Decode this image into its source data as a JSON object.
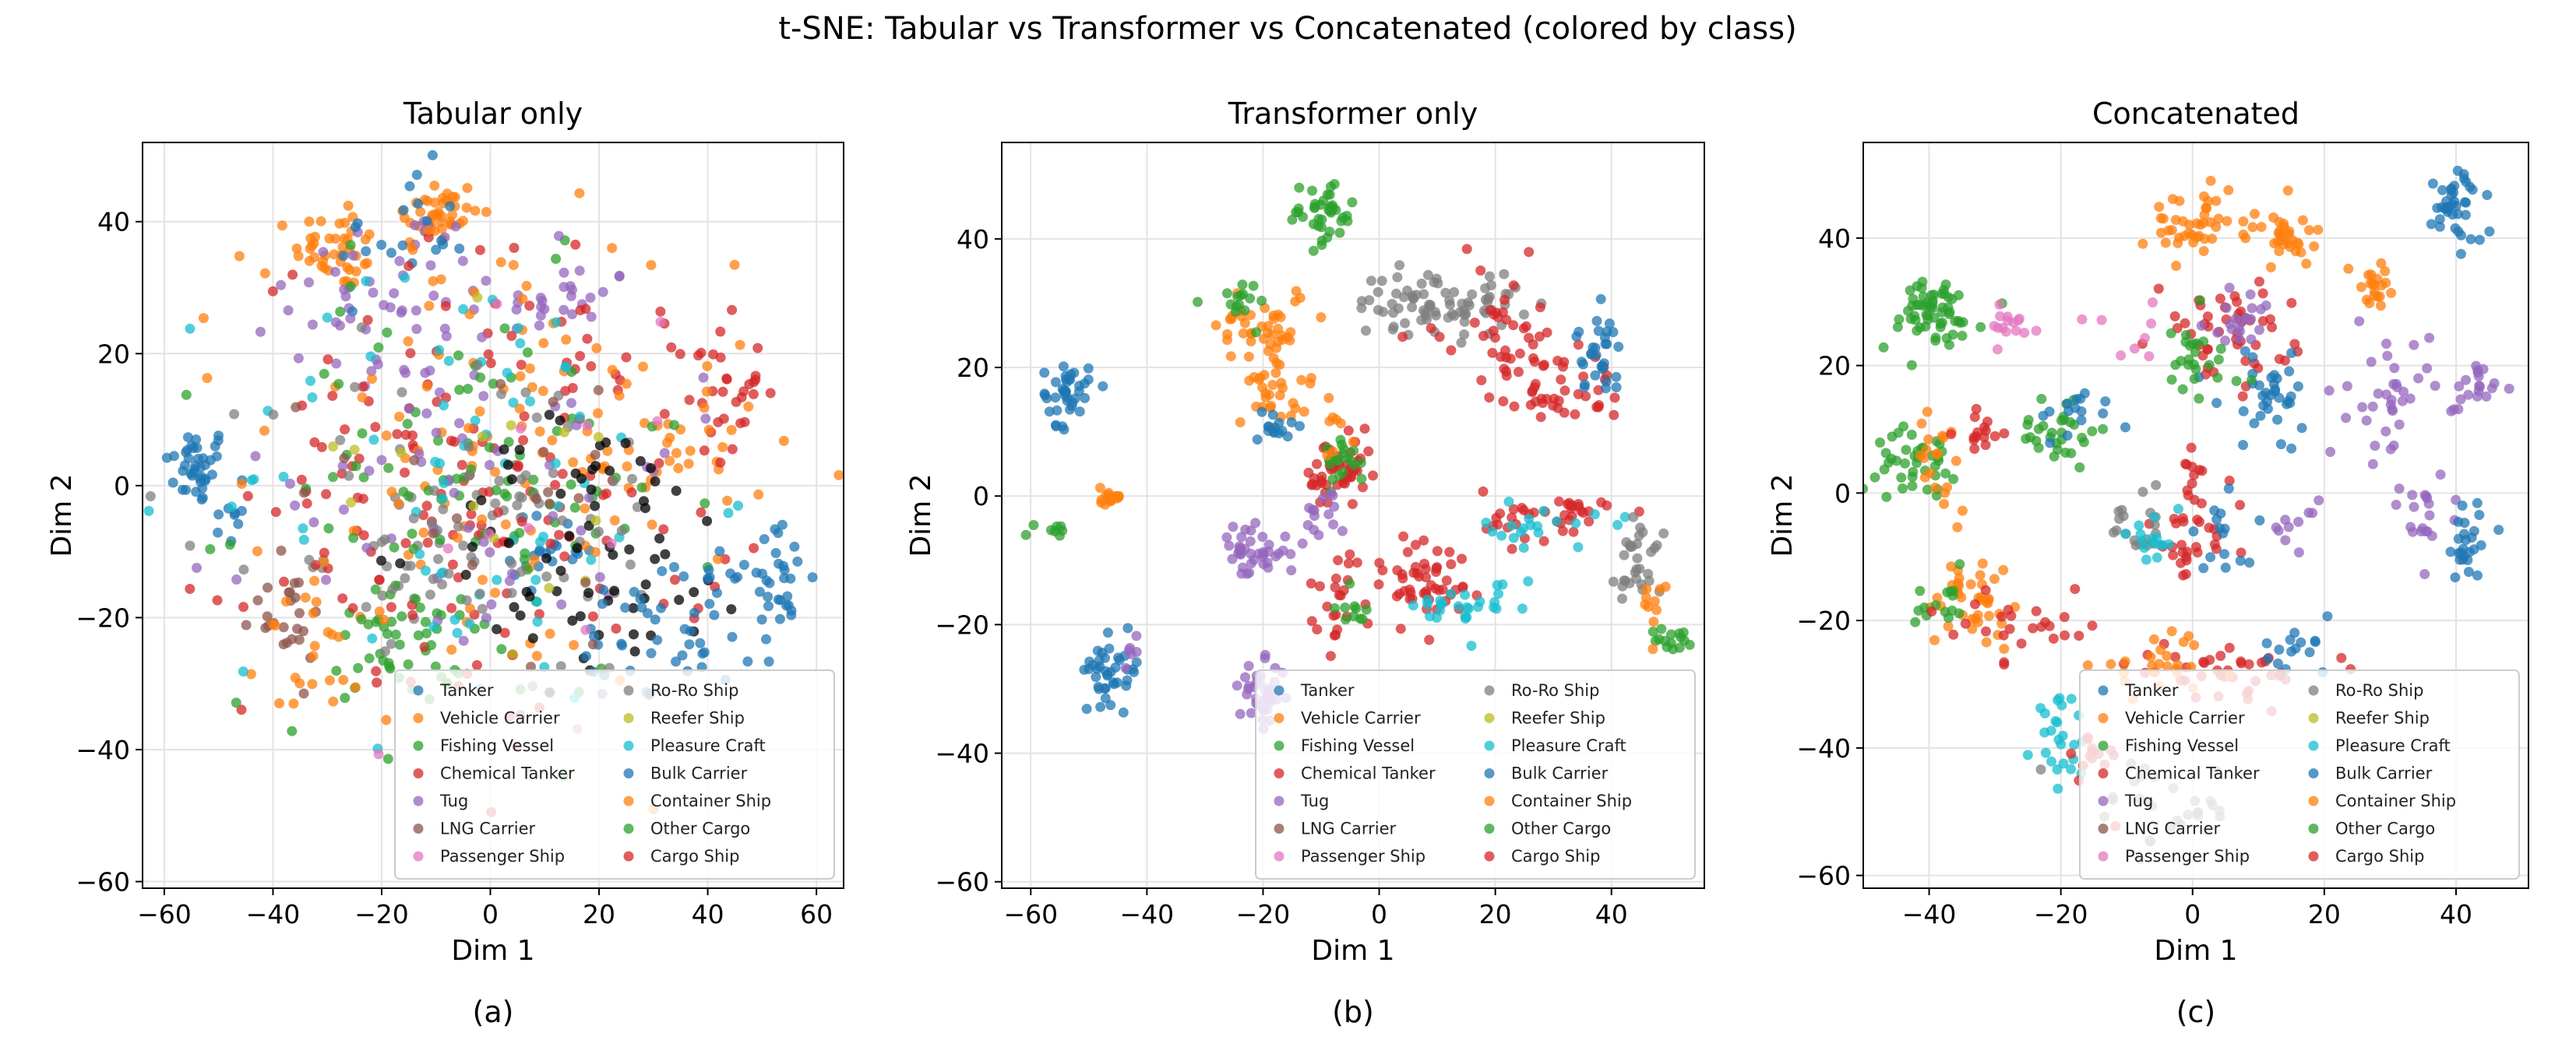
{
  "figure": {
    "title": "t-SNE: Tabular vs Transformer vs Concatenated (colored by class)"
  },
  "chart_data": [
    {
      "type": "scatter",
      "title": "Tabular only",
      "caption": "(a)",
      "xlabel": "Dim 1",
      "ylabel": "Dim 2",
      "xlim": [
        -64,
        65
      ],
      "ylim": [
        -61,
        52
      ],
      "xticks": [
        -60,
        -40,
        -20,
        0,
        20,
        40,
        60
      ],
      "yticks": [
        -60,
        -40,
        -20,
        0,
        20,
        40
      ],
      "grid": true,
      "legend_position": "lower-right",
      "clusters": [
        {
          "cls": 0,
          "cx": -54,
          "cy": 3,
          "sx": 3,
          "sy": 3,
          "n": 40
        },
        {
          "cls": 0,
          "cx": -48,
          "cy": -6,
          "sx": 1.5,
          "sy": 1.5,
          "n": 8
        },
        {
          "cls": 1,
          "cx": -28,
          "cy": 36,
          "sx": 4,
          "sy": 3,
          "n": 40
        },
        {
          "cls": 1,
          "cx": -10,
          "cy": 41,
          "sx": 4,
          "sy": 3,
          "n": 45
        },
        {
          "cls": 4,
          "cx": -17,
          "cy": 28,
          "sx": 10,
          "sy": 8,
          "n": 50
        },
        {
          "cls": 4,
          "cx": 14,
          "cy": 28,
          "sx": 6,
          "sy": 3,
          "n": 25
        },
        {
          "cls": 0,
          "cx": -16,
          "cy": 38,
          "sx": 6,
          "sy": 5,
          "n": 20
        },
        {
          "cls": 3,
          "cx": 42,
          "cy": 15,
          "sx": 4,
          "sy": 5,
          "n": 30
        },
        {
          "cls": 1,
          "cx": 35,
          "cy": 5,
          "sx": 8,
          "sy": 7,
          "n": 30
        },
        {
          "cls": 0,
          "cx": 53,
          "cy": -14,
          "sx": 3,
          "sy": 4,
          "n": 30
        },
        {
          "cls": 0,
          "cx": 12,
          "cy": -10,
          "sx": 4,
          "sy": 3,
          "n": 20
        },
        {
          "cls": 2,
          "cx": -17,
          "cy": -25,
          "sx": 6,
          "sy": 4,
          "n": 40
        },
        {
          "cls": 5,
          "cx": -38,
          "cy": -20,
          "sx": 4,
          "sy": 4,
          "n": 25
        },
        {
          "cls": 8,
          "cx": -10,
          "cy": -10,
          "sx": 10,
          "sy": 6,
          "n": 40
        },
        {
          "cls": 12,
          "cx": -30,
          "cy": -25,
          "sx": 6,
          "sy": 5,
          "n": 25
        },
        {
          "cls": 3,
          "cx": 0,
          "cy": 0,
          "sx": 22,
          "sy": 18,
          "n": 170
        },
        {
          "cls": 1,
          "cx": 0,
          "cy": 5,
          "sx": 22,
          "sy": 18,
          "n": 110
        },
        {
          "cls": 2,
          "cx": -5,
          "cy": -2,
          "sx": 20,
          "sy": 16,
          "n": 100
        },
        {
          "cls": 4,
          "cx": -5,
          "cy": 5,
          "sx": 20,
          "sy": 18,
          "n": 60
        },
        {
          "cls": 10,
          "cx": -5,
          "cy": 0,
          "sx": 22,
          "sy": 18,
          "n": 70
        },
        {
          "cls": 8,
          "cx": 0,
          "cy": -5,
          "sx": 20,
          "sy": 14,
          "n": 60
        },
        {
          "cls": 15,
          "cx": 20,
          "cy": -10,
          "sx": 15,
          "sy": 10,
          "n": 70
        },
        {
          "cls": 11,
          "cx": 35,
          "cy": -20,
          "sx": 10,
          "sy": 6,
          "n": 50
        },
        {
          "cls": 9,
          "cx": 5,
          "cy": 5,
          "sx": 15,
          "sy": 15,
          "n": 15
        },
        {
          "cls": 6,
          "cx": 10,
          "cy": -5,
          "sx": 15,
          "sy": 15,
          "n": 12
        },
        {
          "cls": 5,
          "cx": 0,
          "cy": 0,
          "sx": 20,
          "sy": 15,
          "n": 20
        }
      ]
    },
    {
      "type": "scatter",
      "title": "Transformer only",
      "caption": "(b)",
      "xlabel": "Dim 1",
      "ylabel": "Dim 2",
      "xlim": [
        -65,
        56
      ],
      "ylim": [
        -61,
        55
      ],
      "xticks": [
        -60,
        -40,
        -20,
        0,
        20,
        40
      ],
      "yticks": [
        -60,
        -40,
        -20,
        0,
        20,
        40
      ],
      "grid": true,
      "legend_position": "lower-right",
      "clusters": [
        {
          "cls": 0,
          "cx": -54,
          "cy": 16,
          "sx": 2,
          "sy": 2.5,
          "n": 40
        },
        {
          "cls": 1,
          "cx": -46,
          "cy": 0,
          "sx": 1,
          "sy": 0.8,
          "n": 15
        },
        {
          "cls": 2,
          "cx": -56,
          "cy": -5,
          "sx": 1.5,
          "sy": 0.5,
          "n": 8
        },
        {
          "cls": 0,
          "cx": -46,
          "cy": -27,
          "sx": 2.5,
          "sy": 2.5,
          "n": 40
        },
        {
          "cls": 4,
          "cx": -42,
          "cy": -24,
          "sx": 2,
          "sy": 1.5,
          "n": 6
        },
        {
          "cls": 4,
          "cx": -22,
          "cy": -9,
          "sx": 3,
          "sy": 2,
          "n": 40
        },
        {
          "cls": 4,
          "cx": -20,
          "cy": -31,
          "sx": 2,
          "sy": 2.5,
          "n": 40
        },
        {
          "cls": 2,
          "cx": -10,
          "cy": 44,
          "sx": 3,
          "sy": 2.5,
          "n": 40
        },
        {
          "cls": 1,
          "cx": -20,
          "cy": 27,
          "sx": 4,
          "sy": 3,
          "n": 40
        },
        {
          "cls": 2,
          "cx": -24,
          "cy": 30,
          "sx": 3,
          "sy": 2,
          "n": 15
        },
        {
          "cls": 1,
          "cx": -18,
          "cy": 17,
          "sx": 2,
          "sy": 3,
          "n": 30
        },
        {
          "cls": 0,
          "cx": -18,
          "cy": 11,
          "sx": 1.5,
          "sy": 1.5,
          "n": 15
        },
        {
          "cls": 3,
          "cx": -7,
          "cy": 3,
          "sx": 3,
          "sy": 3,
          "n": 50
        },
        {
          "cls": 2,
          "cx": -6,
          "cy": 6,
          "sx": 2,
          "sy": 2,
          "n": 20
        },
        {
          "cls": 4,
          "cx": -10,
          "cy": -3,
          "sx": 2,
          "sy": 2,
          "n": 15
        },
        {
          "cls": 8,
          "cx": 10,
          "cy": 30,
          "sx": 7,
          "sy": 2.5,
          "n": 80
        },
        {
          "cls": 3,
          "cx": 22,
          "cy": 26,
          "sx": 6,
          "sy": 5,
          "n": 40
        },
        {
          "cls": 3,
          "cx": 30,
          "cy": 17,
          "sx": 6,
          "sy": 3,
          "n": 40
        },
        {
          "cls": 0,
          "cx": 38,
          "cy": 22,
          "sx": 2,
          "sy": 3,
          "n": 30
        },
        {
          "cls": 3,
          "cx": 8,
          "cy": -13,
          "sx": 4,
          "sy": 4,
          "n": 50
        },
        {
          "cls": 10,
          "cx": 12,
          "cy": -18,
          "sx": 3,
          "sy": 2,
          "n": 20
        },
        {
          "cls": 3,
          "cx": 30,
          "cy": -3,
          "sx": 6,
          "sy": 2,
          "n": 40
        },
        {
          "cls": 10,
          "cx": 28,
          "cy": -5,
          "sx": 5,
          "sy": 1.5,
          "n": 20
        },
        {
          "cls": 8,
          "cx": 45,
          "cy": -10,
          "sx": 2,
          "sy": 4,
          "n": 30
        },
        {
          "cls": 2,
          "cx": 50,
          "cy": -22,
          "sx": 1.5,
          "sy": 1.5,
          "n": 15
        },
        {
          "cls": 1,
          "cx": 47,
          "cy": -18,
          "sx": 1.5,
          "sy": 2,
          "n": 10
        },
        {
          "cls": 3,
          "cx": -6,
          "cy": -15,
          "sx": 3,
          "sy": 4,
          "n": 25
        },
        {
          "cls": 2,
          "cx": -5,
          "cy": -17,
          "sx": 2,
          "sy": 2,
          "n": 10
        },
        {
          "cls": 10,
          "cx": 22,
          "cy": -15,
          "sx": 1.5,
          "sy": 1.5,
          "n": 8
        },
        {
          "cls": 1,
          "cx": -8,
          "cy": 12,
          "sx": 3,
          "sy": 3,
          "n": 10
        }
      ]
    },
    {
      "type": "scatter",
      "title": "Concatenated",
      "caption": "(c)",
      "xlabel": "Dim 1",
      "ylabel": "Dim 2",
      "xlim": [
        -50,
        51
      ],
      "ylim": [
        -62,
        55
      ],
      "xticks": [
        -40,
        -20,
        0,
        20,
        40
      ],
      "yticks": [
        -60,
        -40,
        -20,
        0,
        20,
        40
      ],
      "grid": true,
      "legend_position": "lower-right",
      "clusters": [
        {
          "cls": 2,
          "cx": -40,
          "cy": 28,
          "sx": 4,
          "sy": 3,
          "n": 60
        },
        {
          "cls": 6,
          "cx": -28,
          "cy": 26,
          "sx": 3,
          "sy": 1.5,
          "n": 15
        },
        {
          "cls": 2,
          "cx": -42,
          "cy": 5,
          "sx": 3,
          "sy": 2.5,
          "n": 40
        },
        {
          "cls": 1,
          "cx": -38,
          "cy": 5,
          "sx": 2,
          "sy": 4,
          "n": 20
        },
        {
          "cls": 3,
          "cx": -32,
          "cy": 10,
          "sx": 2,
          "sy": 2,
          "n": 15
        },
        {
          "cls": 2,
          "cx": -20,
          "cy": 10,
          "sx": 3,
          "sy": 3,
          "n": 30
        },
        {
          "cls": 0,
          "cx": -18,
          "cy": 12,
          "sx": 3,
          "sy": 2,
          "n": 15
        },
        {
          "cls": 1,
          "cx": -33,
          "cy": -17,
          "sx": 4,
          "sy": 4,
          "n": 40
        },
        {
          "cls": 2,
          "cx": -38,
          "cy": -17,
          "sx": 2,
          "sy": 2,
          "n": 15
        },
        {
          "cls": 3,
          "cx": -30,
          "cy": -20,
          "sx": 3,
          "sy": 3,
          "n": 15
        },
        {
          "cls": 1,
          "cx": 0,
          "cy": 42,
          "sx": 4,
          "sy": 2.5,
          "n": 45
        },
        {
          "cls": 1,
          "cx": 14,
          "cy": 40,
          "sx": 3,
          "sy": 2.5,
          "n": 30
        },
        {
          "cls": 1,
          "cx": 28,
          "cy": 32,
          "sx": 2,
          "sy": 2,
          "n": 20
        },
        {
          "cls": 0,
          "cx": 40,
          "cy": 45,
          "sx": 2,
          "sy": 3,
          "n": 40
        },
        {
          "cls": 4,
          "cx": 30,
          "cy": 15,
          "sx": 3,
          "sy": 5,
          "n": 35
        },
        {
          "cls": 4,
          "cx": 42,
          "cy": 16,
          "sx": 2,
          "sy": 2,
          "n": 20
        },
        {
          "cls": 4,
          "cx": 35,
          "cy": -3,
          "sx": 3,
          "sy": 4,
          "n": 20
        },
        {
          "cls": 0,
          "cx": 42,
          "cy": -8,
          "sx": 2,
          "sy": 3,
          "n": 25
        },
        {
          "cls": 3,
          "cx": 5,
          "cy": 25,
          "sx": 5,
          "sy": 4,
          "n": 50
        },
        {
          "cls": 4,
          "cx": 8,
          "cy": 28,
          "sx": 3,
          "sy": 2,
          "n": 20
        },
        {
          "cls": 0,
          "cx": 12,
          "cy": 15,
          "sx": 4,
          "sy": 4,
          "n": 35
        },
        {
          "cls": 2,
          "cx": 0,
          "cy": 20,
          "sx": 4,
          "sy": 4,
          "n": 25
        },
        {
          "cls": 3,
          "cx": 0,
          "cy": -5,
          "sx": 3,
          "sy": 6,
          "n": 40
        },
        {
          "cls": 8,
          "cx": -8,
          "cy": -5,
          "sx": 3,
          "sy": 3,
          "n": 20
        },
        {
          "cls": 10,
          "cx": -6,
          "cy": -7,
          "sx": 2,
          "sy": 2,
          "n": 15
        },
        {
          "cls": 0,
          "cx": 5,
          "cy": -7,
          "sx": 3,
          "sy": 3,
          "n": 15
        },
        {
          "cls": 4,
          "cx": 15,
          "cy": -5,
          "sx": 2,
          "sy": 2,
          "n": 10
        },
        {
          "cls": 3,
          "cx": 5,
          "cy": -28,
          "sx": 8,
          "sy": 2,
          "n": 40
        },
        {
          "cls": 1,
          "cx": -5,
          "cy": -27,
          "sx": 5,
          "sy": 2,
          "n": 25
        },
        {
          "cls": 0,
          "cx": 15,
          "cy": -25,
          "sx": 3,
          "sy": 2,
          "n": 15
        },
        {
          "cls": 10,
          "cx": -20,
          "cy": -38,
          "sx": 2,
          "sy": 3,
          "n": 25
        },
        {
          "cls": 3,
          "cx": -15,
          "cy": -42,
          "sx": 2,
          "sy": 3,
          "n": 15
        },
        {
          "cls": 8,
          "cx": -5,
          "cy": -50,
          "sx": 6,
          "sy": 4,
          "n": 30
        },
        {
          "cls": 3,
          "cx": -20,
          "cy": -20,
          "sx": 3,
          "sy": 2,
          "n": 10
        },
        {
          "cls": 6,
          "cx": -10,
          "cy": 25,
          "sx": 3,
          "sy": 3,
          "n": 8
        }
      ]
    }
  ],
  "legend": {
    "left": [
      "Tanker",
      "Vehicle Carrier",
      "Fishing Vessel",
      "Chemical Tanker",
      "Tug",
      "LNG Carrier",
      "Passenger Ship"
    ],
    "right": [
      "Ro-Ro Ship",
      "Reefer Ship",
      "Pleasure Craft",
      "Bulk Carrier",
      "Container Ship",
      "Other Cargo",
      "Cargo Ship"
    ]
  },
  "class_colors": [
    "#1f77b4",
    "#ff7f0e",
    "#2ca02c",
    "#d62728",
    "#9467bd",
    "#8c564b",
    "#e377c2",
    "#7f7f7f",
    "#7f7f7f",
    "#bcbd22",
    "#17becf",
    "#1f77b4",
    "#ff7f0e",
    "#2ca02c",
    "#d62728"
  ]
}
